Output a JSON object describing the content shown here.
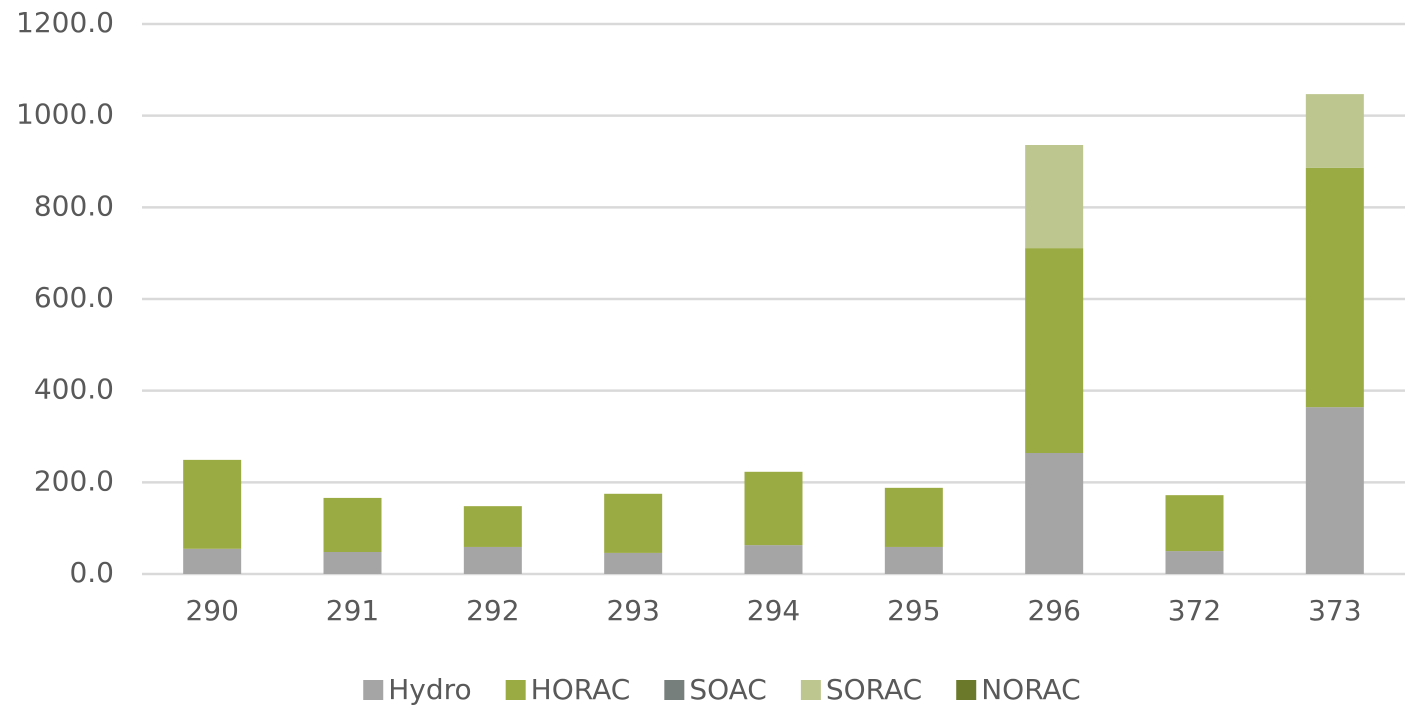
{
  "chart_data": {
    "type": "stacked_bar",
    "categories": [
      "290",
      "291",
      "292",
      "293",
      "294",
      "295",
      "296",
      "372",
      "373"
    ],
    "series": [
      {
        "name": "Hydro",
        "color": "#a5a5a5",
        "values": [
          55,
          48,
          59,
          46,
          63,
          59,
          264,
          50,
          364
        ]
      },
      {
        "name": "HORAC",
        "color": "#9bab44",
        "values": [
          194,
          118,
          89,
          129,
          160,
          129,
          447,
          122,
          522
        ]
      },
      {
        "name": "SOAC",
        "color": "#777f7c",
        "values": [
          0,
          0,
          0,
          0,
          0,
          0,
          0,
          0,
          0
        ]
      },
      {
        "name": "SORAC",
        "color": "#bdc68e",
        "values": [
          0,
          0,
          0,
          0,
          0,
          0,
          225,
          0,
          161
        ]
      },
      {
        "name": "NORAC",
        "color": "#6b7a2a",
        "values": [
          0,
          0,
          0,
          0,
          0,
          0,
          0,
          0,
          0
        ]
      }
    ],
    "ylim": [
      0,
      1200
    ],
    "yticks": [
      {
        "value": 0,
        "label": "0.0"
      },
      {
        "value": 200,
        "label": "200.0"
      },
      {
        "value": 400,
        "label": "400.0"
      },
      {
        "value": 600,
        "label": "600.0"
      },
      {
        "value": 800,
        "label": "800.0"
      },
      {
        "value": 1000,
        "label": "1000.0"
      },
      {
        "value": 1200,
        "label": "1200.0"
      }
    ],
    "grid": true,
    "legend": "bottom"
  }
}
